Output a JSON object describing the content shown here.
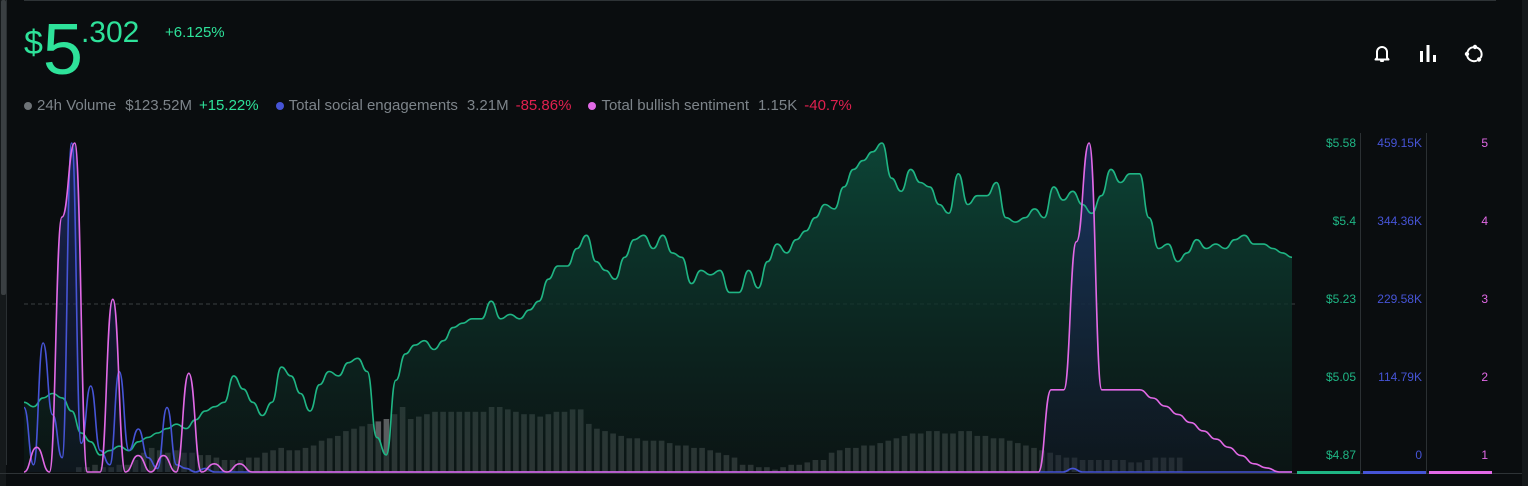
{
  "price": {
    "currency": "$",
    "integer": "5",
    "decimal": ".302",
    "change": "+6.125%"
  },
  "legend": [
    {
      "key": "volume",
      "label": "24h Volume",
      "value": "$123.52M",
      "change": "+15.22%",
      "trend": "up",
      "color": "#6e7377"
    },
    {
      "key": "social",
      "label": "Total social engagements",
      "value": "3.21M",
      "change": "-85.86%",
      "trend": "down",
      "color": "#4654d6"
    },
    {
      "key": "bullish",
      "label": "Total bullish sentiment",
      "value": "1.15K",
      "change": "-40.7%",
      "trend": "down",
      "color": "#e269e6"
    }
  ],
  "toolbar": {
    "icons": [
      "bell-icon",
      "bar-chart-icon",
      "share-icon"
    ]
  },
  "colors": {
    "price": "#1fb584",
    "price_bright": "#2ee29a",
    "social": "#4654d6",
    "bullish": "#e269e6",
    "volume_bar": "#5a5d5f",
    "negative": "#e0204f",
    "background": "#0a0d0f"
  },
  "axes": {
    "price": [
      "$5.58",
      "$5.4",
      "$5.23",
      "$5.05",
      "$4.87"
    ],
    "social": [
      "459.15K",
      "344.36K",
      "229.58K",
      "114.79K",
      "0"
    ],
    "bullish": [
      "5",
      "4",
      "3",
      "2",
      "1"
    ]
  },
  "chart_data": {
    "type": "line",
    "title": "",
    "xlabel": "",
    "ylabel": "",
    "legend_position": "top-left",
    "grid": "single dashed reference line at $5.23",
    "axes": {
      "price": {
        "range": [
          4.87,
          5.58
        ],
        "ticks": [
          "$5.58",
          "$5.4",
          "$5.23",
          "$5.05",
          "$4.87"
        ]
      },
      "social": {
        "range": [
          0,
          459150
        ],
        "ticks": [
          "459.15K",
          "344.36K",
          "229.58K",
          "114.79K",
          "0"
        ]
      },
      "bullish": {
        "range": [
          1,
          5
        ],
        "ticks": [
          "5",
          "4",
          "3",
          "2",
          "1"
        ]
      }
    },
    "series": [
      {
        "name": "Price",
        "type": "area",
        "axis": "price",
        "color": "#1fb584",
        "values": [
          4.99,
          4.98,
          5.0,
          5.01,
          5.0,
          4.97,
          4.92,
          4.9,
          4.87,
          4.88,
          4.89,
          4.88,
          4.9,
          4.91,
          4.92,
          4.93,
          4.94,
          4.93,
          4.95,
          4.97,
          4.98,
          4.99,
          5.05,
          5.02,
          4.99,
          4.96,
          4.99,
          5.07,
          5.05,
          5.01,
          4.97,
          5.03,
          5.06,
          5.05,
          5.08,
          5.09,
          5.06,
          4.91,
          4.87,
          5.04,
          5.1,
          5.12,
          5.13,
          5.11,
          5.13,
          5.16,
          5.17,
          5.18,
          5.18,
          5.22,
          5.18,
          5.19,
          5.18,
          5.2,
          5.22,
          5.27,
          5.3,
          5.3,
          5.34,
          5.37,
          5.31,
          5.29,
          5.27,
          5.32,
          5.36,
          5.37,
          5.34,
          5.37,
          5.33,
          5.32,
          5.26,
          5.29,
          5.28,
          5.29,
          5.24,
          5.24,
          5.29,
          5.25,
          5.31,
          5.35,
          5.33,
          5.36,
          5.38,
          5.41,
          5.44,
          5.43,
          5.48,
          5.52,
          5.54,
          5.56,
          5.58,
          5.5,
          5.47,
          5.52,
          5.49,
          5.48,
          5.44,
          5.42,
          5.51,
          5.44,
          5.46,
          5.46,
          5.49,
          5.41,
          5.4,
          5.41,
          5.43,
          5.41,
          5.48,
          5.45,
          5.47,
          5.44,
          5.42,
          5.46,
          5.52,
          5.49,
          5.51,
          5.51,
          5.41,
          5.34,
          5.35,
          5.31,
          5.33,
          5.36,
          5.34,
          5.35,
          5.34,
          5.36,
          5.37,
          5.35,
          5.35,
          5.34,
          5.33,
          5.32
        ]
      },
      {
        "name": "Total social engagements",
        "type": "line",
        "axis": "social",
        "color": "#4654d6",
        "values": [
          90000,
          10000,
          180000,
          80000,
          20000,
          459150,
          40000,
          120000,
          30000,
          10000,
          140000,
          30000,
          60000,
          20000,
          5000,
          90000,
          10000,
          5000,
          0,
          5000,
          0,
          0,
          0,
          0,
          0,
          0,
          0,
          0,
          0,
          0,
          0,
          0,
          0,
          0,
          0,
          0,
          0,
          0,
          0,
          0,
          0,
          0,
          0,
          0,
          0,
          0,
          0,
          0,
          0,
          0,
          0,
          0,
          0,
          0,
          0,
          0,
          0,
          0,
          0,
          0,
          0,
          0,
          0,
          0,
          0,
          0,
          0,
          0,
          0,
          0,
          0,
          0,
          0,
          0,
          0,
          0,
          0,
          0,
          0,
          0,
          0,
          0,
          0,
          0,
          0,
          0,
          0,
          0,
          0,
          0,
          0,
          0,
          0,
          0,
          0,
          0,
          0,
          0,
          0,
          0,
          0,
          0,
          0,
          0,
          0,
          0,
          0,
          0,
          0,
          0,
          5000,
          0,
          0,
          0,
          0,
          0,
          0,
          0,
          0,
          0,
          0,
          0,
          0,
          0,
          0,
          0,
          0,
          0,
          0,
          0,
          0,
          0,
          0,
          0
        ]
      },
      {
        "name": "Total bullish sentiment",
        "type": "area",
        "axis": "bullish",
        "color": "#e269e6",
        "values": [
          1,
          1.3,
          1,
          4.1,
          5,
          1,
          1,
          3.1,
          1,
          1.2,
          1,
          1.2,
          1,
          2.2,
          1,
          1.1,
          1,
          1.1,
          1,
          1,
          1,
          1,
          1,
          1,
          1,
          1,
          1,
          1,
          1,
          1,
          1,
          1,
          1,
          1,
          1,
          1,
          1,
          1,
          1,
          1,
          1,
          1,
          1,
          1,
          1,
          1,
          1,
          1,
          1,
          1,
          1,
          1,
          1,
          1,
          1,
          1,
          1,
          1,
          1,
          1,
          1,
          1,
          1,
          1,
          1,
          1,
          1,
          1,
          1,
          1,
          1,
          1,
          1,
          1,
          1,
          1,
          1,
          1,
          1,
          1,
          1,
          2,
          2,
          3.8,
          5,
          2,
          2,
          2,
          2,
          1.9,
          1.8,
          1.7,
          1.6,
          1.5,
          1.4,
          1.3,
          1.2,
          1.1,
          1.05,
          1,
          1
        ]
      },
      {
        "name": "24h Volume",
        "type": "bar",
        "axis": "volume (hidden)",
        "color": "#5a5d5f",
        "values": [
          2,
          2,
          3,
          2,
          2,
          3,
          3,
          5,
          8,
          10,
          9,
          8,
          9,
          8,
          8,
          7,
          7,
          6,
          5,
          5,
          5,
          6,
          6,
          8,
          9,
          10,
          9,
          9,
          10,
          11,
          13,
          14,
          15,
          17,
          18,
          19,
          20,
          21,
          22,
          24,
          27,
          22,
          23,
          24,
          25,
          25,
          25,
          25,
          25,
          25,
          25,
          27,
          27,
          26,
          25,
          24,
          24,
          23,
          24,
          25,
          25,
          26,
          26,
          20,
          18,
          17,
          16,
          15,
          14,
          14,
          13,
          13,
          13,
          12,
          11,
          11,
          10,
          10,
          9,
          8,
          7,
          6,
          3,
          3,
          2,
          2,
          1,
          2,
          3,
          3,
          4,
          5,
          5,
          8,
          9,
          10,
          10,
          11,
          11,
          12,
          13,
          14,
          15,
          16,
          16,
          17,
          17,
          16,
          16,
          17,
          17,
          15,
          15,
          14,
          14,
          13,
          12,
          11,
          10,
          9,
          8,
          7,
          6,
          6,
          5,
          5,
          5,
          5,
          5,
          5,
          4,
          4,
          5,
          6,
          6,
          6,
          6
        ]
      }
    ]
  }
}
